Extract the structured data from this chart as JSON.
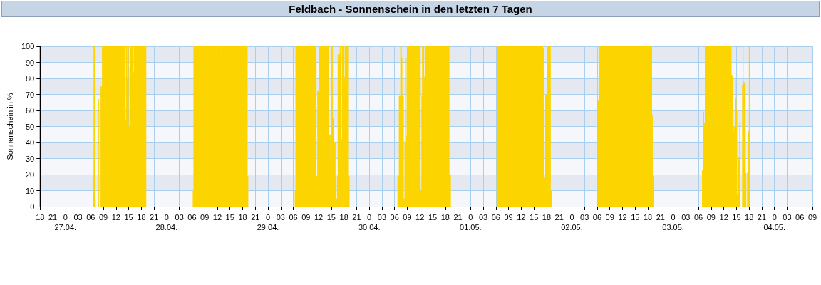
{
  "chart_data": {
    "type": "area",
    "title": "Feldbach - Sonnenschein in den letzten 7 Tagen",
    "ylabel": "Sonnenschein in %",
    "xlim": [
      "--04-26T18:00",
      "--05-04T09:00"
    ],
    "ylim": [
      0,
      100
    ],
    "yticks": [
      0,
      10,
      20,
      30,
      40,
      50,
      60,
      70,
      80,
      90,
      100
    ],
    "grid": true,
    "xticks": [
      {
        "value": "--04-26T18:00",
        "label": "18"
      },
      {
        "value": "--04-26T21:00",
        "label": "21"
      },
      {
        "value": "--04-27T00:00",
        "label": "0\n27.04."
      },
      {
        "value": "--04-27T03:00",
        "label": "03"
      },
      {
        "value": "--04-27T06:00",
        "label": "06"
      },
      {
        "value": "--04-27T09:00",
        "label": "09"
      },
      {
        "value": "--04-27T12:00",
        "label": "12"
      },
      {
        "value": "--04-27T15:00",
        "label": "15"
      },
      {
        "value": "--04-27T18:00",
        "label": "18"
      },
      {
        "value": "--04-27T21:00",
        "label": "21"
      },
      {
        "value": "--04-28T00:00",
        "label": "0\n28.04."
      },
      {
        "value": "--04-28T03:00",
        "label": "03"
      },
      {
        "value": "--04-28T06:00",
        "label": "06"
      },
      {
        "value": "--04-28T09:00",
        "label": "09"
      },
      {
        "value": "--04-28T12:00",
        "label": "12"
      },
      {
        "value": "--04-28T15:00",
        "label": "15"
      },
      {
        "value": "--04-28T18:00",
        "label": "18"
      },
      {
        "value": "--04-28T21:00",
        "label": "21"
      },
      {
        "value": "--04-29T00:00",
        "label": "0\n29.04."
      },
      {
        "value": "--04-29T03:00",
        "label": "03"
      },
      {
        "value": "--04-29T06:00",
        "label": "06"
      },
      {
        "value": "--04-29T09:00",
        "label": "09"
      },
      {
        "value": "--04-29T12:00",
        "label": "12"
      },
      {
        "value": "--04-29T15:00",
        "label": "15"
      },
      {
        "value": "--04-29T18:00",
        "label": "18"
      },
      {
        "value": "--04-29T21:00",
        "label": "21"
      },
      {
        "value": "--04-30T00:00",
        "label": "0\n30.04."
      },
      {
        "value": "--04-30T03:00",
        "label": "03"
      },
      {
        "value": "--04-30T06:00",
        "label": "06"
      },
      {
        "value": "--04-30T09:00",
        "label": "09"
      },
      {
        "value": "--04-30T12:00",
        "label": "12"
      },
      {
        "value": "--04-30T15:00",
        "label": "15"
      },
      {
        "value": "--04-30T18:00",
        "label": "18"
      },
      {
        "value": "--04-30T21:00",
        "label": "21"
      },
      {
        "value": "--05-01T00:00",
        "label": "0\n01.05."
      },
      {
        "value": "--05-01T03:00",
        "label": "03"
      },
      {
        "value": "--05-01T06:00",
        "label": "06"
      },
      {
        "value": "--05-01T09:00",
        "label": "09"
      },
      {
        "value": "--05-01T12:00",
        "label": "12"
      },
      {
        "value": "--05-01T15:00",
        "label": "15"
      },
      {
        "value": "--05-01T18:00",
        "label": "18"
      },
      {
        "value": "--05-01T21:00",
        "label": "21"
      },
      {
        "value": "--05-02T00:00",
        "label": "0\n02.05."
      },
      {
        "value": "--05-02T03:00",
        "label": "03"
      },
      {
        "value": "--05-02T06:00",
        "label": "06"
      },
      {
        "value": "--05-02T09:00",
        "label": "09"
      },
      {
        "value": "--05-02T12:00",
        "label": "12"
      },
      {
        "value": "--05-02T15:00",
        "label": "15"
      },
      {
        "value": "--05-02T18:00",
        "label": "18"
      },
      {
        "value": "--05-02T21:00",
        "label": "21"
      },
      {
        "value": "--05-03T00:00",
        "label": "0\n03.05."
      },
      {
        "value": "--05-03T03:00",
        "label": "03"
      },
      {
        "value": "--05-03T06:00",
        "label": "06"
      },
      {
        "value": "--05-03T09:00",
        "label": "09"
      },
      {
        "value": "--05-03T12:00",
        "label": "12"
      },
      {
        "value": "--05-03T15:00",
        "label": "15"
      },
      {
        "value": "--05-03T18:00",
        "label": "18"
      },
      {
        "value": "--05-03T21:00",
        "label": "21"
      },
      {
        "value": "--05-04T00:00",
        "label": "0\n04.05."
      },
      {
        "value": "--05-04T03:00",
        "label": "03"
      },
      {
        "value": "--05-04T06:00",
        "label": "06"
      },
      {
        "value": "--05-04T09:00",
        "label": "09"
      }
    ],
    "series": [
      {
        "color": "#fcd400",
        "x": [
          "--04-26T18:00",
          "--04-27T06:30",
          "--04-27T06:40",
          "--04-27T07:00",
          "--04-27T07:10",
          "--04-27T07:50",
          "--04-27T08:00",
          "--04-27T08:20",
          "--04-27T08:40",
          "--04-27T14:10",
          "--04-27T14:20",
          "--04-27T14:40",
          "--04-27T14:50",
          "--04-27T15:00",
          "--04-27T15:10",
          "--04-27T15:20",
          "--04-27T16:00",
          "--04-27T16:10",
          "--04-27T19:10",
          "--04-28T06:10",
          "--04-28T06:20",
          "--04-28T13:00",
          "--04-28T13:10",
          "--04-28T19:10",
          "--04-28T19:20",
          "--04-29T06:20",
          "--04-29T06:30",
          "--04-29T11:20",
          "--04-29T11:30",
          "--04-29T11:40",
          "--04-29T12:00",
          "--04-29T12:30",
          "--04-29T12:40",
          "--04-29T14:30",
          "--04-29T14:50",
          "--04-29T15:00",
          "--04-29T15:20",
          "--04-29T15:30",
          "--04-29T15:40",
          "--04-29T16:00",
          "--04-29T16:10",
          "--04-29T16:20",
          "--04-29T16:30",
          "--04-29T17:00",
          "--04-29T17:20",
          "--04-29T17:30",
          "--04-29T18:00",
          "--04-29T18:10",
          "--04-29T19:10",
          "--04-29T19:20",
          "--04-30T06:40",
          "--04-30T07:00",
          "--04-30T07:20",
          "--04-30T07:40",
          "--04-30T07:50",
          "--04-30T08:10",
          "--04-30T08:20",
          "--04-30T08:30",
          "--04-30T08:50",
          "--04-30T09:00",
          "--04-30T09:10",
          "--04-30T12:00",
          "--04-30T12:10",
          "--04-30T12:20",
          "--04-30T12:30",
          "--04-30T13:00",
          "--04-30T13:10",
          "--04-30T19:00",
          "--04-30T19:20",
          "--05-01T06:10",
          "--05-01T06:20",
          "--05-01T17:10",
          "--05-01T17:20",
          "--05-01T17:30",
          "--05-01T17:40",
          "--05-01T18:00",
          "--05-01T18:10",
          "--05-01T19:00",
          "--05-01T19:20",
          "--05-02T06:10",
          "--05-02T06:20",
          "--05-02T19:00",
          "--05-02T19:10",
          "--05-02T19:20",
          "--05-02T19:30",
          "--05-03T06:50",
          "--05-03T07:00",
          "--05-03T07:10",
          "--05-03T07:20",
          "--05-03T07:30",
          "--05-03T13:50",
          "--05-03T14:10",
          "--05-03T14:20",
          "--05-03T14:40",
          "--05-03T14:50",
          "--05-03T15:00",
          "--05-03T15:10",
          "--05-03T15:20",
          "--05-03T15:30",
          "--05-03T15:40",
          "--05-03T15:50",
          "--05-03T16:20",
          "--05-03T16:30",
          "--05-03T16:40",
          "--05-03T16:50",
          "--05-03T17:10",
          "--05-03T17:20",
          "--05-03T17:30",
          "--05-03T17:40",
          "--05-03T17:50",
          "--05-03T18:00",
          "--05-04T09:00"
        ],
        "values": [
          0,
          20,
          100,
          5,
          0,
          67,
          0,
          75,
          100,
          54,
          100,
          80,
          100,
          50,
          87,
          100,
          84,
          100,
          0,
          10,
          100,
          94,
          100,
          19,
          0,
          10,
          100,
          93,
          19,
          72,
          100,
          95,
          100,
          45,
          28,
          100,
          55,
          97,
          40,
          19,
          5,
          19,
          95,
          100,
          42,
          100,
          81,
          100,
          19,
          0,
          19,
          69,
          100,
          93,
          69,
          5,
          40,
          93,
          44,
          93,
          100,
          93,
          10,
          69,
          100,
          81,
          100,
          20,
          0,
          43,
          100,
          99,
          56,
          18,
          70,
          73,
          100,
          10,
          0,
          66,
          100,
          57,
          19,
          48,
          0,
          23,
          55,
          59,
          52,
          100,
          82,
          47,
          50,
          80,
          68,
          60,
          8,
          30,
          31,
          52,
          0,
          76,
          100,
          78,
          77,
          21,
          0,
          21,
          100,
          47,
          0,
          0
        ]
      }
    ]
  }
}
